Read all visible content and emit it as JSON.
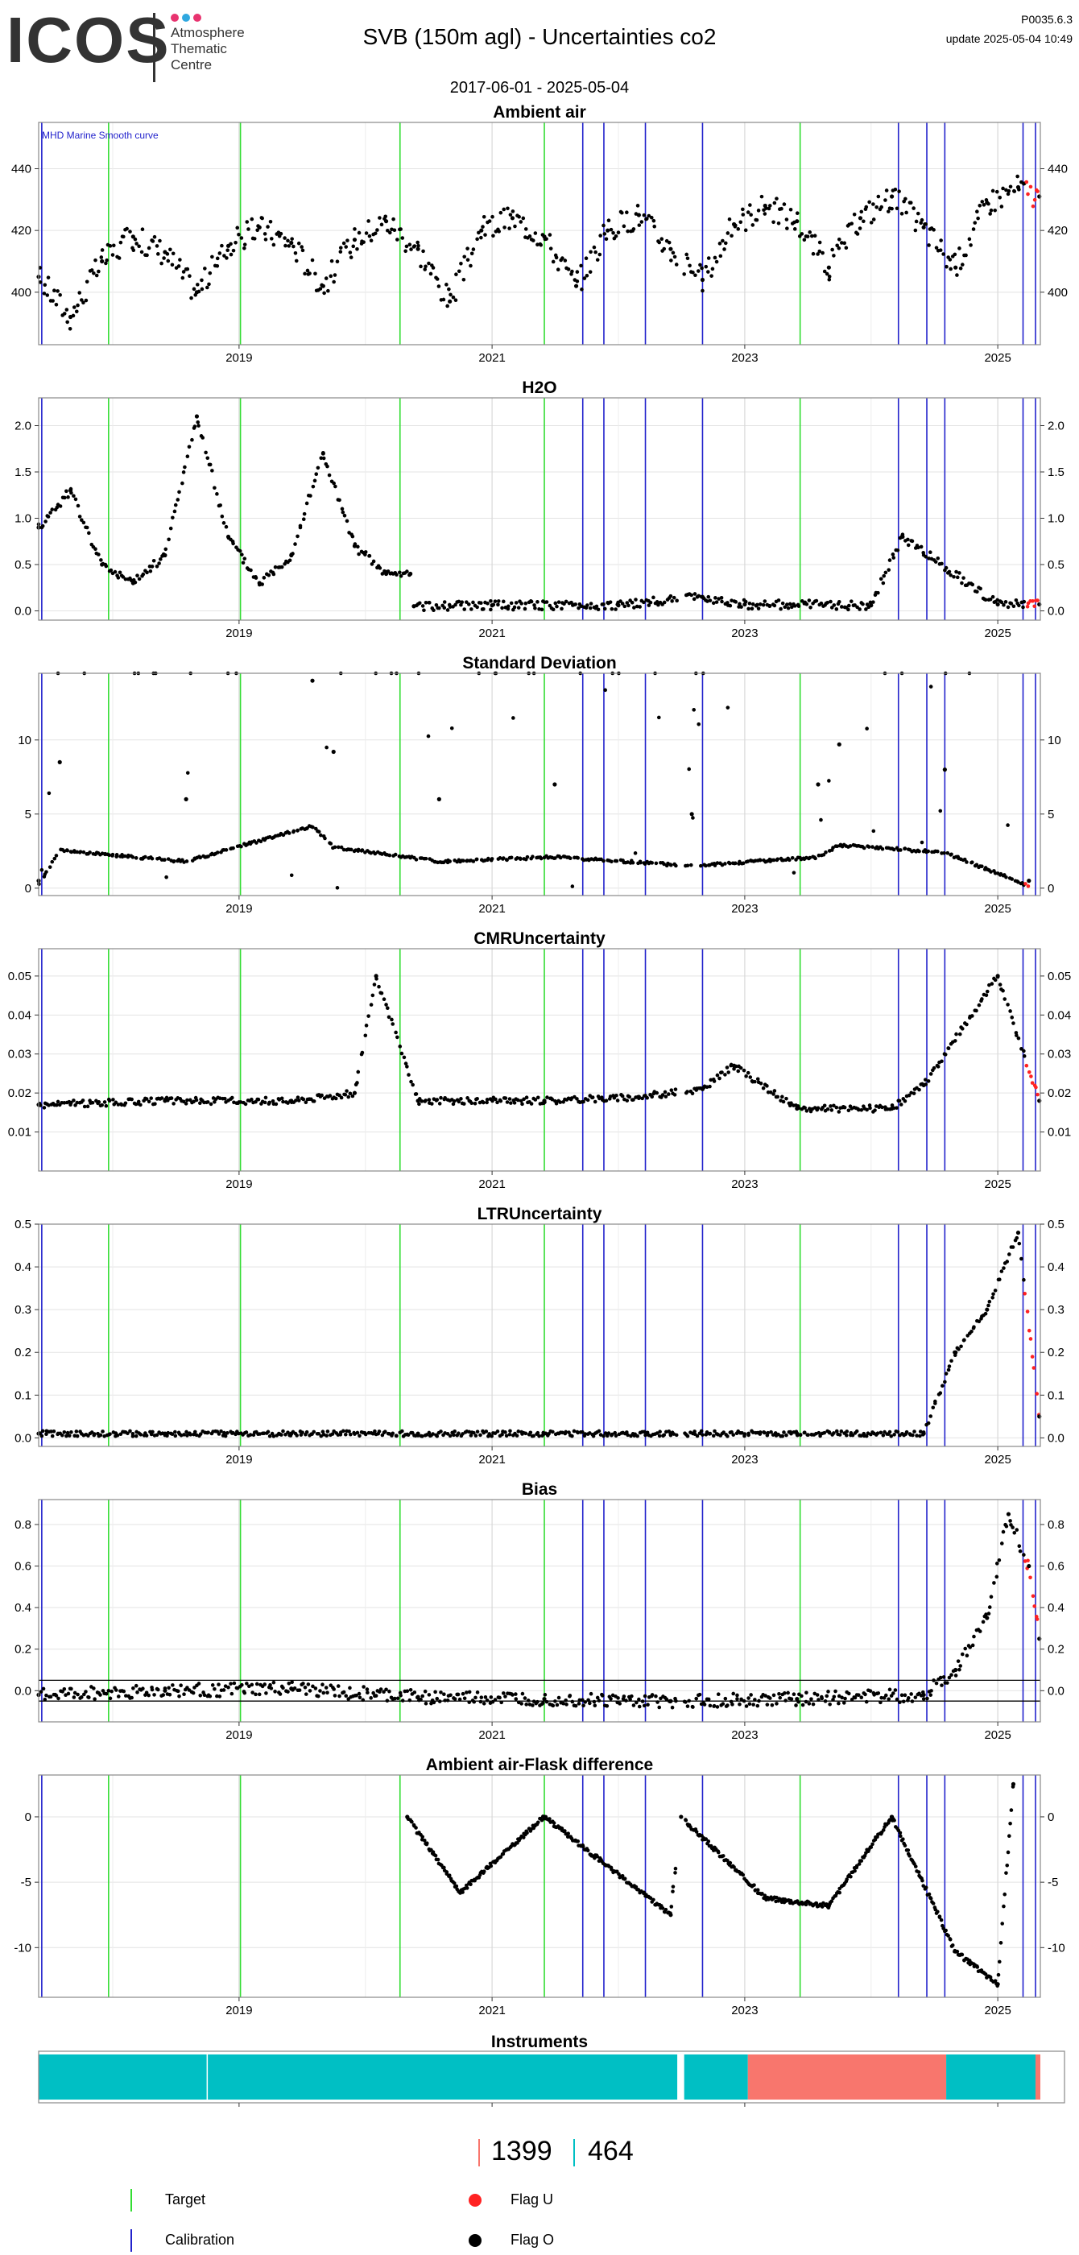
{
  "header": {
    "logo": "ICOS",
    "logo_sub": [
      "Atmosphere",
      "Thematic",
      "Centre"
    ],
    "title": "SVB  (150m agl) - Uncertainties co2",
    "version": "P0035.6.3",
    "update": "update  2025-05-04 10:49",
    "date_range": "2017-06-01 - 2025-05-04"
  },
  "colors": {
    "target": "#33dd33",
    "calibration": "#2222cc",
    "flag_u": "#ff2222",
    "flag_o": "#000000",
    "instrument_a": "#00bfc4",
    "instrument_b": "#f8766d",
    "orange": "#ffa500"
  },
  "x_axis": {
    "start": "2017-06-01",
    "end": "2025-05-04",
    "tick_labels": [
      "2019",
      "2021",
      "2023",
      "2025"
    ],
    "tick_years": [
      2019,
      2021,
      2023,
      2025
    ]
  },
  "event_lines": {
    "target_dates": [
      "2017-12-20",
      "2019-01-05",
      "2020-04-10",
      "2021-06-01",
      "2023-06-10"
    ],
    "calibration_dates": [
      "2017-06-10",
      "2021-09-20",
      "2021-11-20",
      "2022-03-20",
      "2022-09-01",
      "2024-03-20",
      "2024-06-10",
      "2024-08-01",
      "2025-03-15",
      "2025-04-20"
    ]
  },
  "chart_data": [
    {
      "type": "scatter",
      "title": "Ambient air",
      "annotation": "MHD Marine Smooth curve",
      "ylim": [
        383,
        455
      ],
      "yticks": [
        400,
        420,
        440
      ],
      "grid": true,
      "series": [
        {
          "x": [
            "2017-06-01",
            "2017-09-01",
            "2017-12-01",
            "2018-03-01",
            "2018-06-01",
            "2018-09-01",
            "2018-12-01",
            "2019-03-01",
            "2019-06-01",
            "2019-09-01",
            "2019-12-01",
            "2020-03-01",
            "2020-06-01",
            "2020-09-01",
            "2020-12-01",
            "2021-03-01",
            "2021-06-01",
            "2021-09-01",
            "2021-12-01",
            "2022-03-01",
            "2022-06-01",
            "2022-09-01",
            "2022-12-01",
            "2023-03-01",
            "2023-06-01",
            "2023-09-01",
            "2023-12-01",
            "2024-03-01",
            "2024-06-01",
            "2024-09-01",
            "2024-12-01",
            "2025-03-01",
            "2025-05-01"
          ],
          "y": [
            405,
            392,
            410,
            418,
            413,
            400,
            415,
            421,
            416,
            402,
            417,
            423,
            414,
            397,
            420,
            424,
            418,
            402,
            420,
            425,
            414,
            404,
            422,
            428,
            423,
            408,
            424,
            431,
            421,
            408,
            429,
            434,
            431
          ]
        }
      ]
    },
    {
      "type": "scatter",
      "title": "H2O",
      "ylim": [
        -0.1,
        2.3
      ],
      "yticks": [
        0.0,
        0.5,
        1.0,
        1.5,
        2.0
      ],
      "grid": true,
      "series": [
        {
          "x": [
            "2017-06-01",
            "2017-09-01",
            "2017-12-01",
            "2018-03-01",
            "2018-06-01",
            "2018-09-01",
            "2018-12-01",
            "2019-03-01",
            "2019-06-01",
            "2019-09-01",
            "2019-12-01",
            "2020-03-01",
            "2020-05-10",
            "2020-05-20",
            "2021-01-01",
            "2022-01-01",
            "2022-09-01",
            "2023-01-01",
            "2024-01-01",
            "2024-04-01",
            "2025-01-01",
            "2025-05-01"
          ],
          "y": [
            0.9,
            1.3,
            0.5,
            0.3,
            0.6,
            2.1,
            0.8,
            0.3,
            0.6,
            1.7,
            0.7,
            0.4,
            0.4,
            0.05,
            0.06,
            0.06,
            0.15,
            0.07,
            0.06,
            0.8,
            0.07,
            0.07
          ]
        }
      ]
    },
    {
      "type": "scatter",
      "title": "Standard Deviation",
      "ylim": [
        -0.5,
        14.5
      ],
      "yticks": [
        0,
        5,
        10
      ],
      "grid": true,
      "series": [
        {
          "x": [
            "2017-06-01",
            "2017-08-01",
            "2018-08-01",
            "2019-08-01",
            "2019-10-01",
            "2020-08-01",
            "2021-07-01",
            "2022-08-01",
            "2023-08-01",
            "2023-10-01",
            "2024-08-01",
            "2025-04-01"
          ],
          "y": [
            0.5,
            8.5,
            6,
            14,
            9.2,
            6,
            7,
            5,
            7,
            9.7,
            8,
            0.5
          ]
        }
      ]
    },
    {
      "type": "scatter",
      "title": "CMRUncertainty",
      "ylim": [
        0.0,
        0.057
      ],
      "yticks": [
        0.01,
        0.02,
        0.03,
        0.04,
        0.05
      ],
      "grid": true,
      "series": [
        {
          "x": [
            "2017-06-01",
            "2018-06-01",
            "2019-06-01",
            "2019-12-01",
            "2020-02-01",
            "2020-06-01",
            "2021-06-01",
            "2022-03-01",
            "2022-09-01",
            "2022-12-01",
            "2023-06-01",
            "2024-03-01",
            "2024-06-01",
            "2025-01-01",
            "2025-05-01"
          ],
          "y": [
            0.017,
            0.018,
            0.018,
            0.02,
            0.05,
            0.018,
            0.018,
            0.019,
            0.021,
            0.027,
            0.016,
            0.016,
            0.022,
            0.05,
            0.018
          ]
        }
      ]
    },
    {
      "type": "scatter",
      "title": "LTRUncertainty",
      "ylim": [
        -0.02,
        0.5
      ],
      "yticks": [
        0.0,
        0.1,
        0.2,
        0.3,
        0.4,
        0.5
      ],
      "grid": true,
      "series": [
        {
          "x": [
            "2017-06-01",
            "2018-06-01",
            "2019-06-01",
            "2020-06-01",
            "2021-06-01",
            "2022-06-01",
            "2023-06-01",
            "2024-06-01",
            "2024-09-01",
            "2024-12-01",
            "2025-03-01",
            "2025-05-01"
          ],
          "y": [
            0.01,
            0.01,
            0.01,
            0.01,
            0.01,
            0.01,
            0.01,
            0.01,
            0.2,
            0.3,
            0.48,
            0.05
          ]
        }
      ]
    },
    {
      "type": "scatter",
      "title": "Bias",
      "ylim": [
        -0.15,
        0.92
      ],
      "yticks": [
        0.0,
        0.2,
        0.4,
        0.6,
        0.8
      ],
      "grid": true,
      "series": [
        {
          "x": [
            "2017-06-01",
            "2018-06-01",
            "2019-06-01",
            "2020-06-01",
            "2021-06-01",
            "2022-06-01",
            "2023-06-01",
            "2024-06-01",
            "2024-09-01",
            "2024-12-01",
            "2025-02-01",
            "2025-04-01",
            "2025-05-01"
          ],
          "y": [
            -0.02,
            0.0,
            0.01,
            -0.03,
            -0.04,
            -0.05,
            -0.04,
            -0.02,
            0.1,
            0.35,
            0.85,
            0.6,
            0.25
          ]
        }
      ]
    },
    {
      "type": "scatter",
      "title": "Ambient air-Flask difference",
      "ylim": [
        -13.8,
        3.2
      ],
      "yticks": [
        -10,
        -5,
        0
      ],
      "grid": true,
      "series": [
        {
          "x": [
            "2020-05-01",
            "2020-10-01",
            "2021-06-01",
            "2022-06-01",
            "2022-07-01",
            "2023-03-01",
            "2023-09-01",
            "2024-03-01",
            "2024-09-01",
            "2025-01-01",
            "2025-02-15"
          ],
          "y": [
            0,
            -5.8,
            0,
            -7.5,
            0,
            -6.2,
            -6.8,
            0,
            -10.3,
            -12.8,
            2.5
          ]
        }
      ]
    },
    {
      "type": "bar",
      "title": "Instruments",
      "segments": [
        {
          "start": "2017-06-01",
          "end": "2022-06-20",
          "instrument": "464"
        },
        {
          "start": "2022-07-10",
          "end": "2023-01-10",
          "instrument": "464"
        },
        {
          "start": "2023-01-10",
          "end": "2024-08-05",
          "instrument": "1399"
        },
        {
          "start": "2024-08-05",
          "end": "2025-04-20",
          "instrument": "464"
        },
        {
          "start": "2025-04-20",
          "end": "2025-05-04",
          "instrument": "1399"
        }
      ]
    }
  ],
  "legend": {
    "instrument_a_label": "1399",
    "instrument_b_label": "464",
    "target": "Target",
    "calibration": "Calibration",
    "flag_u": "Flag U",
    "flag_o": "Flag O"
  }
}
